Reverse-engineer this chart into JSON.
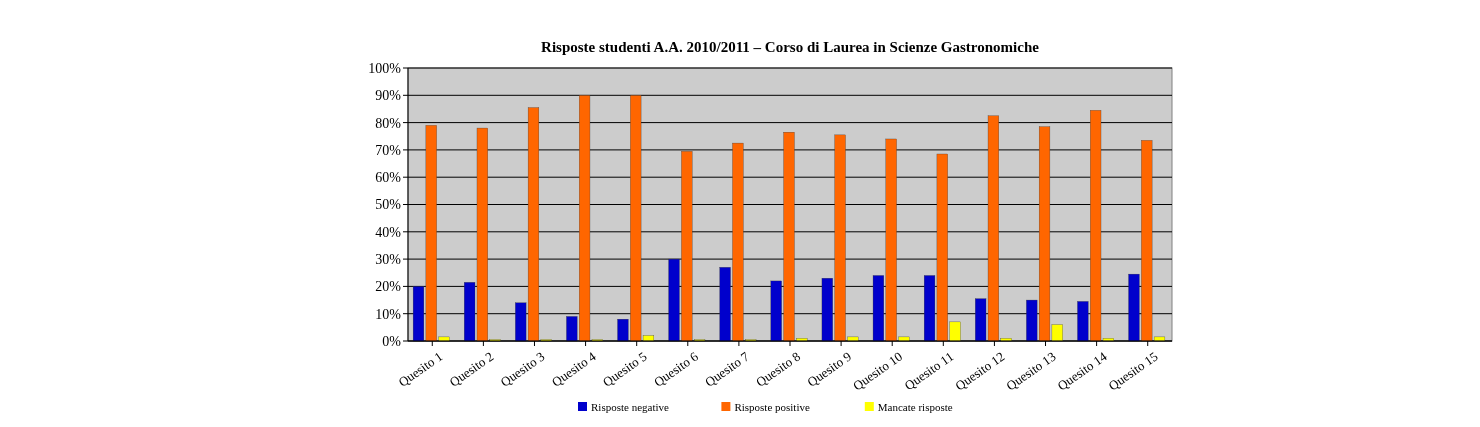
{
  "chart_data": {
    "type": "bar",
    "title": "Risposte studenti A.A. 2010/2011 – Corso di Laurea in Scienze Gastronomiche",
    "categories": [
      "Quesito 1",
      "Quesito 2",
      "Quesito 3",
      "Quesito 4",
      "Quesito 5",
      "Quesito 6",
      "Quesito 7",
      "Quesito 8",
      "Quesito 9",
      "Quesito 10",
      "Quesito 11",
      "Quesito 12",
      "Quesito 13",
      "Quesito 14",
      "Quesito 15"
    ],
    "series": [
      {
        "name": "Risposte negative",
        "color": "#0000cc",
        "values": [
          20,
          21.5,
          14,
          9,
          8,
          30,
          27,
          22,
          23,
          24,
          24,
          15.5,
          15,
          14.5,
          24.5
        ]
      },
      {
        "name": "Risposte positive",
        "color": "#ff6600",
        "values": [
          79,
          78,
          85.5,
          90,
          90,
          69.5,
          72.5,
          76.5,
          75.5,
          74,
          68.5,
          82.5,
          78.5,
          84.5,
          73.5
        ]
      },
      {
        "name": "Mancate risposte",
        "color": "#ffff00",
        "values": [
          1.5,
          0.5,
          0.5,
          0.5,
          2,
          0.5,
          0.5,
          1,
          1.5,
          1.5,
          7,
          1,
          6,
          1,
          1.5
        ]
      }
    ],
    "ylim": [
      0,
      100
    ],
    "yticks": [
      {
        "value": 0,
        "label": "0%"
      },
      {
        "value": 10,
        "label": "10%"
      },
      {
        "value": 20,
        "label": "20%"
      },
      {
        "value": 30,
        "label": "30%"
      },
      {
        "value": 40,
        "label": "40%"
      },
      {
        "value": 50,
        "label": "50%"
      },
      {
        "value": 60,
        "label": "60%"
      },
      {
        "value": 70,
        "label": "70%"
      },
      {
        "value": 80,
        "label": "80%"
      },
      {
        "value": 90,
        "label": "90%"
      },
      {
        "value": 100,
        "label": "100%"
      }
    ],
    "grid": "y",
    "legend": "bottom"
  }
}
